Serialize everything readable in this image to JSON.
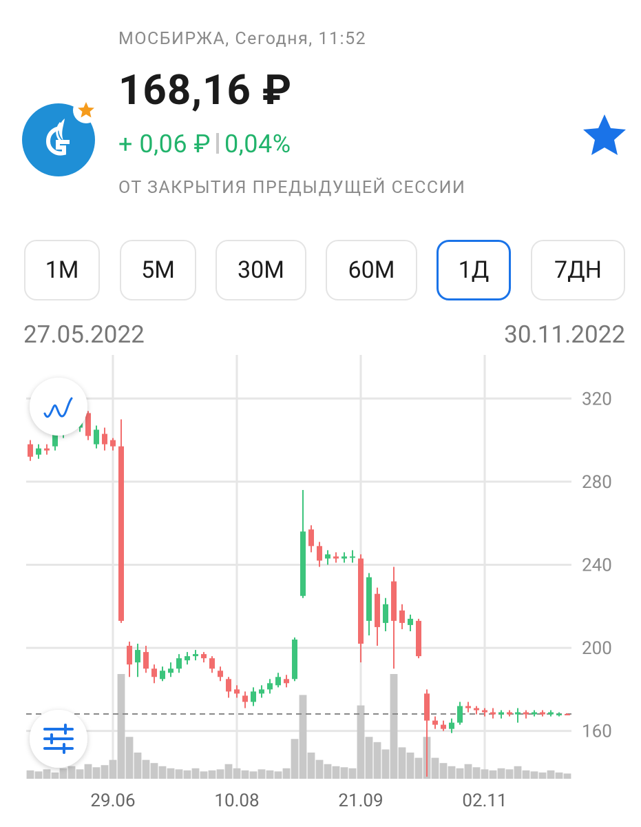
{
  "header": {
    "exchange_time": "МОСБИРЖА, Сегодня, 11:52",
    "price": "168,16 ₽",
    "change_abs": "+ 0,06 ₽",
    "change_pct": "0,04%",
    "subtitle": "ОТ ЗАКРЫТИЯ ПРЕДЫДУЩЕЙ СЕССИИ"
  },
  "intervals": [
    "1М",
    "5М",
    "30М",
    "60М",
    "1Д",
    "7ДН"
  ],
  "selected_interval": 4,
  "chart_data": {
    "type": "candlestick",
    "date_start": "27.05.2022",
    "date_end": "30.11.2022",
    "categories": [
      null,
      null,
      null,
      null,
      null,
      null,
      null,
      null,
      null,
      null,
      "29.06",
      null,
      null,
      null,
      null,
      null,
      null,
      null,
      null,
      null,
      null,
      null,
      null,
      null,
      null,
      "10.08",
      null,
      null,
      null,
      null,
      null,
      null,
      null,
      null,
      null,
      null,
      null,
      null,
      null,
      null,
      "21.09",
      null,
      null,
      null,
      null,
      null,
      null,
      null,
      null,
      null,
      null,
      null,
      null,
      null,
      null,
      "02.11",
      null,
      null,
      null,
      null,
      null,
      null,
      null,
      null,
      null,
      null
    ],
    "open": [
      298,
      293,
      296,
      297,
      303,
      308,
      306,
      313,
      298,
      303,
      300,
      297,
      201,
      193,
      198,
      190,
      185,
      188,
      190,
      194,
      196,
      197,
      195,
      189,
      185,
      180,
      177,
      174,
      178,
      180,
      182,
      185,
      185,
      225,
      257,
      249,
      243,
      244,
      243,
      244,
      243,
      213,
      226,
      212,
      232,
      218,
      211,
      213,
      178,
      165,
      163,
      161,
      164,
      172,
      171,
      170,
      169,
      168,
      169,
      168,
      169,
      168,
      169,
      168,
      168,
      168.2
    ],
    "high": [
      300,
      298,
      298,
      304,
      310,
      314,
      315,
      314,
      307,
      306,
      301,
      310,
      203,
      202,
      201,
      192,
      191,
      193,
      197,
      198,
      199,
      198,
      196,
      191,
      186,
      182,
      179,
      181,
      182,
      185,
      188,
      187,
      205,
      276,
      259,
      251,
      247,
      246,
      246,
      247,
      245,
      236,
      229,
      224,
      239,
      221,
      216,
      214,
      180,
      167,
      165,
      166,
      174,
      174,
      172,
      171,
      171,
      170,
      170,
      171,
      170,
      170,
      170,
      170,
      169,
      168.5
    ],
    "low": [
      290,
      291,
      293,
      295,
      301,
      306,
      304,
      300,
      296,
      295,
      295,
      212,
      186,
      186,
      188,
      183,
      184,
      186,
      188,
      192,
      194,
      193,
      188,
      184,
      176,
      176,
      171,
      172,
      176,
      178,
      181,
      181,
      184,
      224,
      246,
      239,
      240,
      241,
      241,
      241,
      193,
      206,
      201,
      208,
      190,
      209,
      208,
      195,
      138,
      161,
      160,
      159,
      163,
      169,
      168,
      167,
      166,
      166,
      167,
      164,
      166,
      167,
      167,
      167,
      167,
      167.8
    ],
    "close": [
      292,
      296,
      295,
      303,
      306,
      312,
      312,
      302,
      305,
      298,
      297,
      213,
      192,
      199,
      190,
      186,
      189,
      190,
      195,
      196,
      197,
      195,
      190,
      186,
      179,
      178,
      174,
      179,
      180,
      183,
      186,
      183,
      204,
      256,
      249,
      242,
      245,
      243,
      244,
      244,
      202,
      234,
      210,
      221,
      213,
      212,
      214,
      196,
      165,
      163,
      161,
      164,
      172,
      171,
      170,
      169,
      168,
      169,
      168,
      169,
      168,
      169,
      168,
      169,
      168.2,
      168.16
    ],
    "volume": [
      8,
      7,
      9,
      6,
      10,
      12,
      9,
      14,
      11,
      13,
      18,
      100,
      40,
      25,
      18,
      15,
      12,
      10,
      9,
      8,
      10,
      7,
      8,
      9,
      14,
      10,
      8,
      7,
      9,
      8,
      7,
      10,
      38,
      80,
      25,
      18,
      14,
      12,
      11,
      10,
      70,
      40,
      35,
      28,
      100,
      30,
      25,
      20,
      40,
      20,
      15,
      12,
      10,
      14,
      11,
      9,
      8,
      10,
      9,
      12,
      8,
      7,
      6,
      8,
      6,
      5
    ],
    "last": 168.16,
    "ylim": [
      137,
      341
    ],
    "yticks": [
      160,
      200,
      240,
      280,
      320
    ],
    "up_color": "#3cc47c",
    "down_color": "#f26d6d",
    "volume_color": "#c8c8c8",
    "grid": true
  }
}
